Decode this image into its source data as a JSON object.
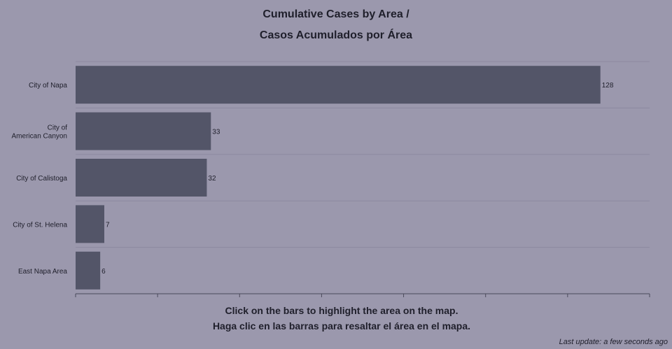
{
  "title": {
    "line1": "Cumulative Cases by Area /",
    "line2": "Casos Acumulados por Área"
  },
  "instructions": {
    "line1": "Click on the bars to highlight the area on the map.",
    "line2": "Haga clic en las barras para resaltar el área en el mapa."
  },
  "footer": {
    "last_update": "Last update: a few seconds ago"
  },
  "colors": {
    "background": "#9b98ad",
    "bar": "#535568",
    "text": "#1f1f2b",
    "axis": "#4a4a5a",
    "grid": "#8c89a0"
  },
  "chart_data": {
    "type": "bar",
    "orientation": "horizontal",
    "title": "Cumulative Cases by Area / Casos Acumulados por Área",
    "categories": [
      [
        "City of Napa"
      ],
      [
        "City of",
        "American Canyon"
      ],
      [
        "City of Calistoga"
      ],
      [
        "City of St. Helena"
      ],
      [
        "East Napa Area"
      ]
    ],
    "values": [
      128,
      33,
      32,
      7,
      6
    ],
    "xlim": [
      0,
      140
    ],
    "x_tick_values": [
      0,
      20,
      40,
      60,
      80,
      100,
      120,
      140
    ],
    "x_tick_labels_shown": false,
    "data_labels": true,
    "grid": true
  }
}
